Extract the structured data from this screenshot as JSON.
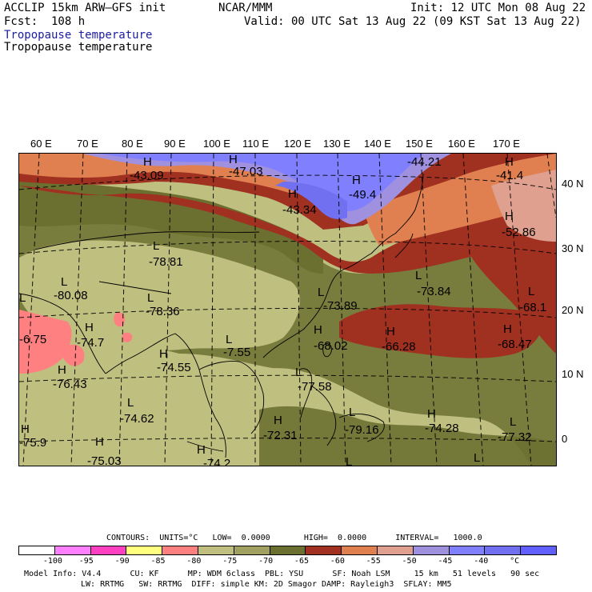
{
  "header": {
    "model_line": "ACCLIP 15km ARW–GFS init",
    "fcst_line": "Fcst:  108 h",
    "org": "NCAR/MMM",
    "init": "Init: 12 UTC Mon 08 Aug 22",
    "valid": "Valid: 00 UTC Sat 13 Aug 22 (09 KST Sat 13 Aug 22)",
    "field_title_1": "Tropopause temperature",
    "field_title_2": "Tropopause temperature"
  },
  "lon_labels": [
    "60 E",
    "70 E",
    "80 E",
    "90 E",
    "100 E",
    "110 E",
    "120 E",
    "130 E",
    "140 E",
    "150 E",
    "160 E",
    "170 E"
  ],
  "lat_labels": [
    "40 N",
    "30 N",
    "20 N",
    "10 N",
    "0"
  ],
  "extrema": [
    {
      "type": "H",
      "value": "-43.09"
    },
    {
      "type": "H",
      "value": "-47.03"
    },
    {
      "type": "H",
      "value": "-44.21"
    },
    {
      "type": "H",
      "value": "-41.4"
    },
    {
      "type": "H",
      "value": "-43.34"
    },
    {
      "type": "H",
      "value": "-49.4"
    },
    {
      "type": "H",
      "value": "-52.86"
    },
    {
      "type": "L",
      "value": "-78.81"
    },
    {
      "type": "L",
      "value": "-80.08"
    },
    {
      "type": "L",
      "value": "-78.36"
    },
    {
      "type": "L",
      "value": "-73.89"
    },
    {
      "type": "L",
      "value": "-73.84"
    },
    {
      "type": "L",
      "value": "-68.1"
    },
    {
      "type": "H",
      "value": "-74.7"
    },
    {
      "type": "H",
      "value": "-68.02"
    },
    {
      "type": "H",
      "value": "-66.28"
    },
    {
      "type": "H",
      "value": "-68.47"
    },
    {
      "type": "H",
      "value": "-74.55"
    },
    {
      "type": "H",
      "value": "-6.75"
    },
    {
      "type": "L",
      "value": "-7.55"
    },
    {
      "type": "H",
      "value": "-76.43"
    },
    {
      "type": "L",
      "value": "-77.58"
    },
    {
      "type": "L",
      "value": "-74.62"
    },
    {
      "type": "H",
      "value": "-72.31"
    },
    {
      "type": "L",
      "value": "-79.16"
    },
    {
      "type": "H",
      "value": "-74.28"
    },
    {
      "type": "L",
      "value": "-77.32"
    },
    {
      "type": "H",
      "value": "-75.9"
    },
    {
      "type": "H",
      "value": "-75.03"
    },
    {
      "type": "H",
      "value": "-74.2"
    }
  ],
  "contours_line": "CONTOURS:  UNITS=°C   LOW=  0.0000       HIGH=  0.0000      INTERVAL=   1000.0",
  "colorbar": {
    "colors": [
      "#ffffff",
      "#ff80ff",
      "#ff40c0",
      "#ffff80",
      "#ff8080",
      "#bfbf80",
      "#a0a060",
      "#6b7030",
      "#a03020",
      "#e08050",
      "#e0a090",
      "#a090e0",
      "#8080ff",
      "#7070f0",
      "#6060ff"
    ],
    "labels": [
      "-100",
      "-95",
      "-90",
      "-85",
      "-80",
      "-75",
      "-70",
      "-65",
      "-60",
      "-55",
      "-50",
      "-45",
      "-40",
      "°C"
    ]
  },
  "footer": {
    "line1": "Model Info: V4.4      CU: KF      MP: WDM 6class  PBL: YSU      SF: Noah LSM     15 km   51 levels   90 sec",
    "line2": "LW: RRTMG   SW: RRTMG  DIFF: simple KM: 2D Smagor DAMP: Rayleigh3  SFLAY: MM5"
  }
}
